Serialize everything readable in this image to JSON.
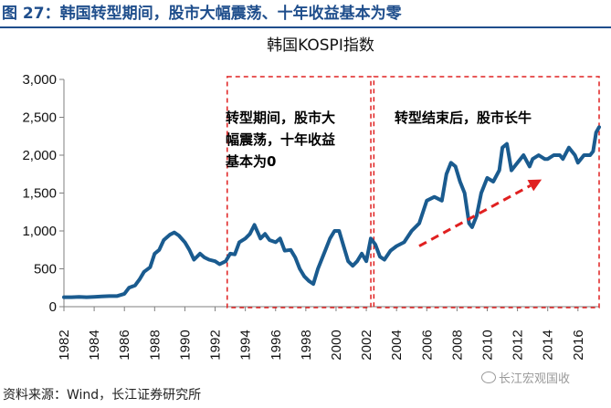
{
  "figure": {
    "title": "图 27：韩国转型期间，股市大幅震荡、十年收益基本为零",
    "source": "资料来源：Wind，长江证券研究所",
    "watermark": "长江宏观国收"
  },
  "chart_data": {
    "type": "line",
    "title": "韩国KOSPI指数",
    "xlabel": "",
    "ylabel": "",
    "xlim": [
      1982,
      2017.4
    ],
    "ylim": [
      0,
      3000
    ],
    "yticks": [
      0,
      500,
      1000,
      1500,
      2000,
      2500,
      3000
    ],
    "ytick_labels": [
      "0",
      "500",
      "1,000",
      "1,500",
      "2,000",
      "2,500",
      "3,000"
    ],
    "xticks": [
      1982,
      1984,
      1986,
      1988,
      1990,
      1992,
      1994,
      1996,
      1998,
      2000,
      2002,
      2004,
      2006,
      2008,
      2010,
      2012,
      2014,
      2016
    ],
    "xtick_labels": [
      "1982",
      "1984",
      "1986",
      "1988",
      "1990",
      "1992",
      "1994",
      "1996",
      "1998",
      "2000",
      "2002",
      "2004",
      "2006",
      "2008",
      "2010",
      "2012",
      "2014",
      "2016"
    ],
    "line_color": "#1a5b8f",
    "series": [
      {
        "name": "KOSPI",
        "x": [
          1982,
          1982.5,
          1983,
          1983.5,
          1984,
          1984.5,
          1985,
          1985.5,
          1986,
          1986.3,
          1986.7,
          1987,
          1987.3,
          1987.7,
          1988,
          1988.3,
          1988.6,
          1989,
          1989.3,
          1989.6,
          1990,
          1990.3,
          1990.6,
          1991,
          1991.3,
          1991.6,
          1992,
          1992.3,
          1992.7,
          1993,
          1993.3,
          1993.6,
          1994,
          1994.3,
          1994.6,
          1995,
          1995.3,
          1995.6,
          1996,
          1996.3,
          1996.6,
          1997,
          1997.3,
          1997.6,
          1997.9,
          1998.2,
          1998.5,
          1998.8,
          1999,
          1999.3,
          1999.6,
          1999.9,
          2000.2,
          2000.5,
          2000.8,
          2001.1,
          2001.4,
          2001.7,
          2002,
          2002.3,
          2002.6,
          2002.9,
          2003.2,
          2003.6,
          2004,
          2004.5,
          2005,
          2005.5,
          2006,
          2006.5,
          2007,
          2007.3,
          2007.6,
          2007.9,
          2008.2,
          2008.5,
          2008.8,
          2009,
          2009.3,
          2009.6,
          2010,
          2010.4,
          2010.8,
          2011,
          2011.3,
          2011.6,
          2012,
          2012.4,
          2012.8,
          2013,
          2013.4,
          2013.8,
          2014,
          2014.4,
          2014.8,
          2015,
          2015.4,
          2015.8,
          2016,
          2016.4,
          2016.8,
          2017,
          2017.2,
          2017.4
        ],
        "values": [
          125,
          125,
          130,
          125,
          130,
          135,
          140,
          140,
          170,
          250,
          280,
          360,
          460,
          520,
          700,
          750,
          880,
          950,
          980,
          940,
          850,
          750,
          620,
          700,
          650,
          620,
          600,
          560,
          600,
          700,
          690,
          850,
          900,
          960,
          1080,
          900,
          960,
          880,
          850,
          900,
          740,
          750,
          650,
          500,
          400,
          340,
          300,
          500,
          600,
          750,
          900,
          1000,
          1000,
          800,
          600,
          540,
          600,
          700,
          600,
          900,
          820,
          660,
          620,
          740,
          800,
          850,
          1000,
          1100,
          1400,
          1450,
          1400,
          1750,
          1900,
          1850,
          1650,
          1500,
          1100,
          1050,
          1200,
          1500,
          1700,
          1650,
          1800,
          2100,
          2150,
          1800,
          1900,
          2000,
          1850,
          1950,
          2000,
          1950,
          1950,
          2000,
          2000,
          1950,
          2100,
          2000,
          1900,
          2000,
          2000,
          2050,
          2300,
          2370
        ]
      }
    ],
    "regions": [
      {
        "from": 1992.8,
        "to": 2002.3,
        "label_lines": [
          "转型期间，股市大",
          "幅震荡，十年收益",
          "基本为0"
        ]
      },
      {
        "from": 2002.5,
        "to": 2017.4,
        "label_lines": [
          "转型结束后，股市长牛"
        ]
      }
    ],
    "trend_arrow": {
      "from": [
        2005.5,
        800
      ],
      "to": [
        2013.6,
        1680
      ],
      "color": "#e02020"
    }
  }
}
